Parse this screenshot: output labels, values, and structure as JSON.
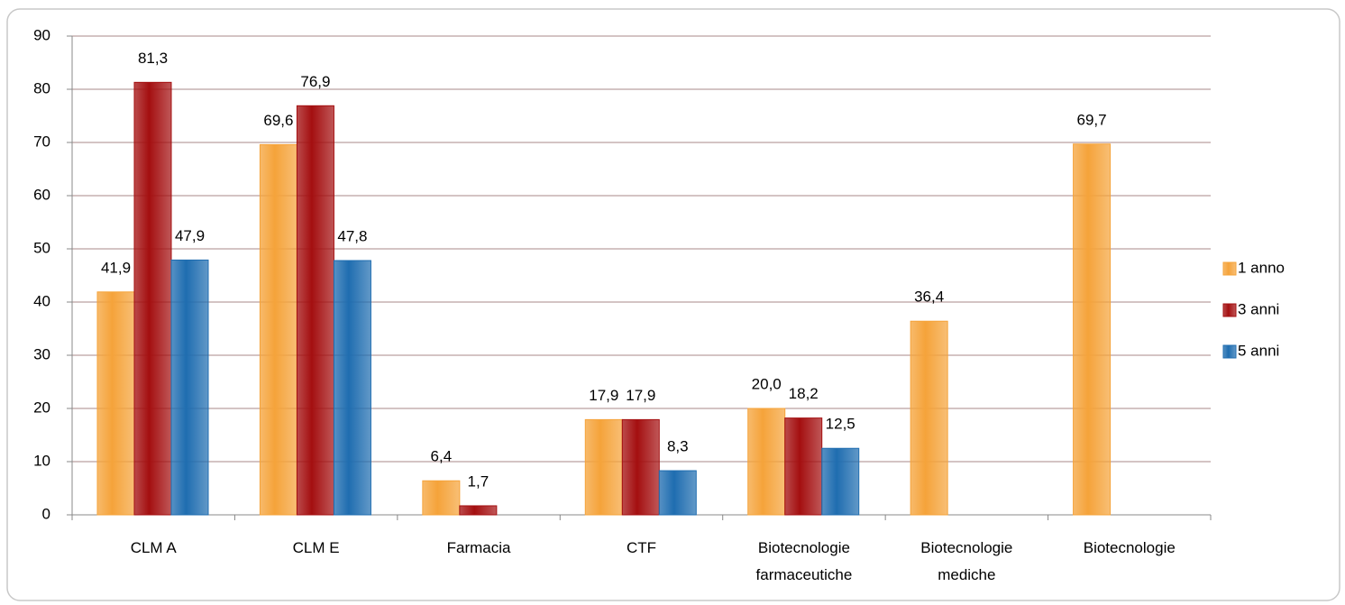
{
  "chart_data": {
    "type": "bar",
    "categories": [
      "CLM A",
      "CLM E",
      "Farmacia",
      "CTF",
      "Biotecnologie farmaceutiche",
      "Biotecnologie mediche",
      "Biotecnologie"
    ],
    "series": [
      {
        "name": "1 anno",
        "color": "#f5a33a",
        "values": [
          41.9,
          69.6,
          6.4,
          17.9,
          20.0,
          36.4,
          69.7
        ],
        "value_labels": [
          "41,9",
          "69,6",
          "6,4",
          "17,9",
          "20,0",
          "36,4",
          "69,7"
        ]
      },
      {
        "name": "3 anni",
        "color": "#a40f10",
        "values": [
          81.3,
          76.9,
          1.7,
          17.9,
          18.2,
          null,
          null
        ],
        "value_labels": [
          "81,3",
          "76,9",
          "1,7",
          "17,9",
          "18,2",
          null,
          null
        ]
      },
      {
        "name": "5 anni",
        "color": "#1f6db0",
        "values": [
          47.9,
          47.8,
          null,
          8.3,
          12.5,
          null,
          null
        ],
        "value_labels": [
          "47,9",
          "47,8",
          null,
          "8,3",
          "12,5",
          null,
          null
        ]
      }
    ],
    "ylim": [
      0,
      90
    ],
    "yticks": [
      0,
      10,
      20,
      30,
      40,
      50,
      60,
      70,
      80,
      90
    ],
    "grid": true,
    "legend": "right"
  }
}
